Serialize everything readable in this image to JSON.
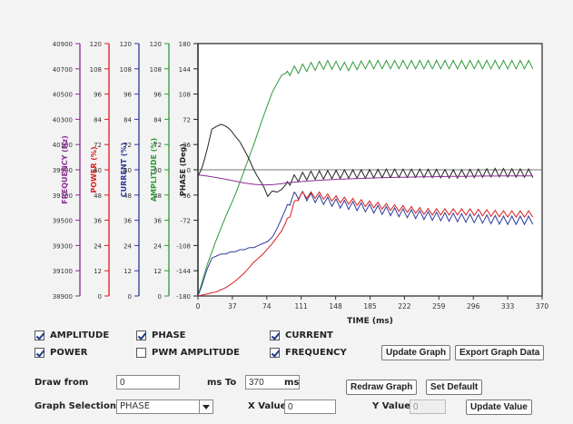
{
  "chart_data": {
    "type": "line",
    "title": "",
    "xlabel": "TIME (ms)",
    "xticks": [
      0,
      37,
      74,
      111,
      148,
      185,
      222,
      259,
      296,
      333,
      370
    ],
    "xlim": [
      0,
      370
    ],
    "grid": false,
    "axes": [
      {
        "name": "FREQUENCY (Hz)",
        "color": "#8a2b94",
        "ticks": [
          "38900",
          "39100",
          "39300",
          "39500",
          "39700",
          "39900",
          "40100",
          "40300",
          "40500",
          "40700",
          "40900"
        ],
        "min": 38900,
        "max": 40900
      },
      {
        "name": "POWER (%)",
        "color": "#d81e1e",
        "ticks": [
          "0",
          "12",
          "24",
          "36",
          "48",
          "60",
          "72",
          "84",
          "96",
          "108",
          "120"
        ],
        "min": 0,
        "max": 120
      },
      {
        "name": "CURRENT (%)",
        "color": "#2a3a9a",
        "ticks": [
          "0",
          "12",
          "24",
          "36",
          "48",
          "60",
          "72",
          "84",
          "96",
          "108",
          "120"
        ],
        "min": 0,
        "max": 120
      },
      {
        "name": "AMPLITUDE (%)",
        "color": "#2e9a3a",
        "ticks": [
          "0",
          "12",
          "24",
          "36",
          "48",
          "60",
          "72",
          "84",
          "96",
          "108",
          "120"
        ],
        "min": 0,
        "max": 120
      },
      {
        "name": "PHASE (Deg)",
        "color": "#222222",
        "ticks": [
          "-180",
          "-144",
          "-108",
          "-72",
          "-36",
          "0",
          "36",
          "72",
          "108",
          "144",
          "180"
        ],
        "min": -180,
        "max": 180
      }
    ],
    "series": [
      {
        "name": "AMPLITUDE",
        "axis": "AMPLITUDE (%)",
        "color": "#2e9a3a",
        "x": [
          0,
          10,
          20,
          30,
          40,
          50,
          60,
          70,
          80,
          90,
          100,
          110,
          120,
          140,
          160,
          180,
          200,
          240,
          280,
          320,
          360
        ],
        "y": [
          0,
          15,
          27,
          38,
          48,
          60,
          72,
          85,
          97,
          105,
          107,
          108,
          109,
          110,
          109,
          110,
          110,
          110,
          110,
          110,
          110
        ],
        "ripple": 4
      },
      {
        "name": "PHASE",
        "axis": "PHASE (Deg)",
        "color": "#222222",
        "x": [
          0,
          5,
          10,
          15,
          20,
          25,
          30,
          35,
          40,
          45,
          50,
          55,
          60,
          65,
          70,
          75,
          80,
          85,
          90,
          95,
          100,
          110,
          120,
          140,
          160,
          180,
          200,
          240,
          280,
          320,
          360
        ],
        "y": [
          -10,
          5,
          30,
          58,
          62,
          65,
          62,
          57,
          48,
          40,
          28,
          15,
          0,
          -12,
          -22,
          -38,
          -30,
          -32,
          -28,
          -20,
          -15,
          -10,
          -8,
          -7,
          -6,
          -6,
          -5,
          -5,
          -6,
          -4,
          -5
        ],
        "ripple": 12
      },
      {
        "name": "CURRENT",
        "axis": "CURRENT (%)",
        "color": "#2a3a9a",
        "x": [
          0,
          5,
          10,
          15,
          20,
          25,
          30,
          35,
          40,
          45,
          50,
          55,
          60,
          65,
          70,
          75,
          80,
          85,
          90,
          95,
          100,
          105,
          110,
          130,
          150,
          180,
          210,
          250,
          290,
          330,
          360
        ],
        "y": [
          0,
          6,
          13,
          18,
          19,
          20,
          20,
          21,
          21,
          22,
          22,
          23,
          23,
          24,
          25,
          26,
          28,
          32,
          37,
          42,
          46,
          48,
          48,
          46,
          44,
          42,
          40,
          38,
          37,
          36,
          36
        ],
        "ripple": 4
      },
      {
        "name": "POWER",
        "axis": "POWER (%)",
        "color": "#d81e1e",
        "x": [
          0,
          10,
          20,
          30,
          40,
          50,
          60,
          70,
          80,
          90,
          100,
          105,
          110,
          130,
          150,
          180,
          210,
          250,
          290,
          330,
          360
        ],
        "y": [
          0,
          1,
          2,
          4,
          7,
          11,
          16,
          20,
          25,
          31,
          40,
          45,
          48,
          48,
          46,
          44,
          42,
          40,
          40,
          39,
          39
        ],
        "ripple": 3
      },
      {
        "name": "FREQUENCY",
        "axis": "FREQUENCY (Hz)",
        "color": "#8a2b94",
        "x": [
          0,
          10,
          20,
          30,
          40,
          50,
          60,
          70,
          80,
          90,
          100,
          120,
          150,
          200,
          250,
          300,
          360
        ],
        "y": [
          39860,
          39850,
          39838,
          39825,
          39810,
          39795,
          39785,
          39780,
          39782,
          39790,
          39800,
          39812,
          39825,
          39838,
          39845,
          39850,
          39852
        ],
        "ripple": 0
      }
    ]
  },
  "controls": {
    "checkboxes": [
      {
        "label": "AMPLITUDE",
        "checked": true
      },
      {
        "label": "PHASE",
        "checked": true
      },
      {
        "label": "CURRENT",
        "checked": true
      },
      {
        "label": "POWER",
        "checked": true
      },
      {
        "label": "PWM AMPLITUDE",
        "checked": false
      },
      {
        "label": "FREQUENCY",
        "checked": true
      }
    ],
    "update_graph": "Update Graph",
    "export_graph_data": "Export Graph Data",
    "draw_from_label": "Draw from",
    "draw_from_value": "0",
    "ms_to_label": "ms  To",
    "draw_to_value": "370",
    "ms_label": "ms",
    "redraw_graph": "Redraw Graph",
    "set_default": "Set Default",
    "graph_selection_label": "Graph Selection",
    "graph_selection_value": "PHASE",
    "x_value_label": "X Value",
    "x_value": "0",
    "y_value_label": "Y Value",
    "y_value": "0",
    "update_value": "Update Value"
  }
}
